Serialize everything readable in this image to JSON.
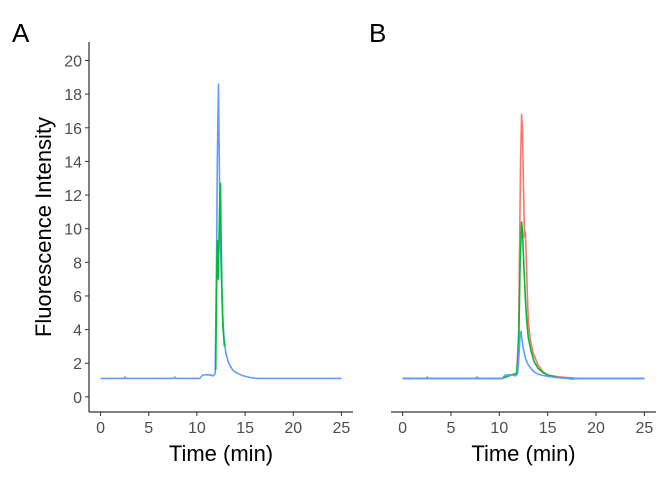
{
  "chart_data": [
    {
      "type": "line",
      "panel_label": "A",
      "xlabel": "Time (min)",
      "ylabel": "Fluorescence Intensity",
      "xlim": [
        -1.2,
        26.2
      ],
      "ylim": [
        -0.9,
        21.1
      ],
      "xticks": [
        0,
        5,
        10,
        15,
        20,
        25
      ],
      "yticks": [
        0,
        2,
        4,
        6,
        8,
        10,
        12,
        14,
        16,
        18,
        20
      ],
      "grid": false,
      "legend": "none",
      "series": [
        {
          "color": "#619CFF",
          "x": [
            0,
            2.5,
            2.55,
            2.6,
            5,
            7.6,
            7.7,
            7.8,
            10.3,
            10.6,
            11.2,
            11.7,
            11.9,
            12.05,
            12.12,
            12.18,
            12.24,
            12.3,
            12.36,
            12.42,
            12.5,
            12.6,
            12.7,
            12.8,
            13.0,
            13.3,
            13.7,
            14.2,
            14.8,
            15.5,
            16.2,
            18,
            20,
            22,
            25
          ],
          "y": [
            1.1,
            1.1,
            1.18,
            1.1,
            1.1,
            1.1,
            1.18,
            1.1,
            1.1,
            1.3,
            1.32,
            1.25,
            1.4,
            9.0,
            14.0,
            16.5,
            18.6,
            15.0,
            12.0,
            10.0,
            8.0,
            6.0,
            4.6,
            3.6,
            2.6,
            2.0,
            1.6,
            1.4,
            1.25,
            1.15,
            1.1,
            1.1,
            1.1,
            1.1,
            1.1
          ]
        },
        {
          "color": "#00BA38",
          "x": [
            11.95,
            12.05,
            12.12,
            12.2,
            12.28,
            12.36,
            12.44,
            12.52,
            12.6,
            12.7,
            12.85
          ],
          "y": [
            1.6,
            7.0,
            9.3,
            7.0,
            9.0,
            11.5,
            12.7,
            9.0,
            6.0,
            4.2,
            3.0
          ]
        }
      ]
    },
    {
      "type": "line",
      "panel_label": "B",
      "xlabel": "Time (min)",
      "ylabel": "",
      "xlim": [
        -1.2,
        26.2
      ],
      "ylim": [
        -0.9,
        21.1
      ],
      "xticks": [
        0,
        5,
        10,
        15,
        20,
        25
      ],
      "yticks": [],
      "grid": false,
      "legend": "none",
      "series": [
        {
          "color": "#F8766D",
          "x": [
            0,
            5,
            10.3,
            11.2,
            11.8,
            12.0,
            12.1,
            12.2,
            12.3,
            12.4,
            12.5,
            12.6,
            12.7,
            12.8,
            12.9,
            13.0,
            13.2,
            13.5,
            14.0,
            14.5,
            15.0,
            15.5,
            16.0,
            17.0,
            18.0,
            20,
            25
          ],
          "y": [
            1.1,
            1.1,
            1.1,
            1.3,
            1.4,
            4.0,
            9.0,
            14.0,
            16.8,
            15.8,
            12.5,
            9.5,
            9.8,
            8.0,
            6.0,
            4.5,
            3.4,
            2.6,
            1.9,
            1.5,
            1.3,
            1.25,
            1.2,
            1.15,
            1.1,
            1.1,
            1.1
          ]
        },
        {
          "color": "#00BA38",
          "x": [
            0,
            5,
            10.3,
            11.2,
            11.8,
            12.0,
            12.15,
            12.3,
            12.4,
            12.5,
            12.6,
            12.7,
            12.8,
            13.0,
            13.3,
            13.6,
            14.0,
            14.5,
            15.0,
            15.5,
            16.0,
            17.5,
            25
          ],
          "y": [
            1.1,
            1.1,
            1.1,
            1.3,
            1.4,
            3.0,
            8.0,
            10.4,
            9.8,
            8.3,
            7.0,
            5.8,
            4.8,
            3.5,
            2.7,
            2.1,
            1.7,
            1.45,
            1.3,
            1.22,
            1.15,
            1.1,
            1.1
          ]
        },
        {
          "color": "#619CFF",
          "x": [
            0,
            2.5,
            2.55,
            2.6,
            5,
            7.6,
            7.7,
            7.8,
            10.3,
            10.6,
            11.2,
            11.7,
            11.9,
            12.05,
            12.15,
            12.25,
            12.35,
            12.5,
            12.7,
            13.0,
            13.4,
            13.8,
            14.3,
            15.0,
            15.8,
            17.0,
            17.5,
            18,
            20,
            25
          ],
          "y": [
            1.1,
            1.1,
            1.18,
            1.1,
            1.1,
            1.1,
            1.18,
            1.1,
            1.1,
            1.3,
            1.32,
            1.25,
            1.4,
            2.6,
            3.7,
            3.9,
            3.4,
            2.8,
            2.3,
            1.9,
            1.6,
            1.4,
            1.3,
            1.22,
            1.15,
            1.1,
            1.05,
            1.1,
            1.1,
            1.1
          ]
        }
      ]
    }
  ]
}
